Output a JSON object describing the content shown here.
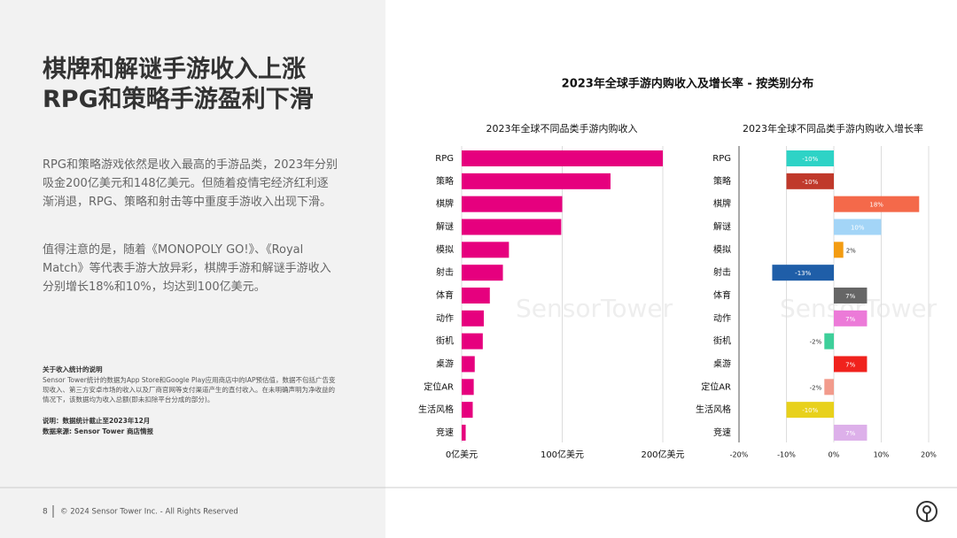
{
  "slide": {
    "title": [
      "棋牌和解谜手游收入上涨",
      "RPG和策略手游盈利下滑"
    ],
    "paragraphs": [
      "RPG和策略游戏依然是收入最高的手游品类，2023年分别吸金200亿美元和148亿美元。但随着疫情宅经济红利逐渐消退，RPG、策略和射击等中重度手游收入出现下滑。",
      "值得注意的是，随着《MONOPOLY GO!》、《Royal Match》等代表手游大放异彩，棋牌手游和解谜手游收入分别增长18%和10%，均达到100亿美元。"
    ],
    "note_title": "关于收入统计的说明",
    "note_text": "Sensor Tower统计的数据为App Store和Google Play应用商店中的IAP预估值，数据不包括广告变现收入、第三方安卓市场的收入以及厂商官网等支付渠道产生的直付收入。在未明确声明为净收益的情况下，该数据均为收入总额(即未扣除平台分成的部分)。",
    "remark": "说明：数据统计截止至2023年12月",
    "source": "数据来源: Sensor Tower 商店情报",
    "page": "8",
    "copyright": "© 2024 Sensor Tower Inc. - All Rights Reserved",
    "chart_title": "2023年全球手游内购收入及增长率 - 按类别分布",
    "watermark": "SensorTower"
  },
  "chart_data": [
    {
      "type": "bar",
      "orientation": "horizontal",
      "title": "2023年全球不同品类手游内购收入",
      "categories": [
        "RPG",
        "策略",
        "棋牌",
        "解谜",
        "模拟",
        "射击",
        "体育",
        "动作",
        "街机",
        "桌游",
        "定位AR",
        "生活风格",
        "竞速"
      ],
      "values": [
        200,
        148,
        100,
        99,
        47,
        41,
        28,
        22,
        21,
        13,
        12,
        11,
        4
      ],
      "color": "#e6007e",
      "xlim": [
        0,
        200
      ],
      "xticks": [
        {
          "value": 0,
          "label": "0亿美元"
        },
        {
          "value": 100,
          "label": "100亿美元"
        },
        {
          "value": 200,
          "label": "200亿美元"
        }
      ],
      "grid": true
    },
    {
      "type": "bar",
      "orientation": "horizontal",
      "title": "2023年全球不同品类手游内购收入增长率",
      "categories": [
        "RPG",
        "策略",
        "棋牌",
        "解谜",
        "模拟",
        "射击",
        "体育",
        "动作",
        "街机",
        "桌游",
        "定位AR",
        "生活风格",
        "竞速"
      ],
      "values": [
        -10,
        -10,
        18,
        10,
        2,
        -13,
        7,
        7,
        -2,
        7,
        -2,
        -10,
        7
      ],
      "value_labels": [
        "-10%",
        "-10%",
        "18%",
        "10%",
        "2%",
        "-13%",
        "7%",
        "7%",
        "-2%",
        "7%",
        "-2%",
        "-10%",
        "7%"
      ],
      "colors": [
        "#2ed3c6",
        "#c0392b",
        "#f4694a",
        "#a3d5f7",
        "#f39c12",
        "#1f5ea8",
        "#666666",
        "#ec7ad8",
        "#3ecf9a",
        "#f0221d",
        "#f29b8c",
        "#e8d11c",
        "#ddb0ea"
      ],
      "xlim": [
        -20,
        20
      ],
      "xticks": [
        {
          "value": -20,
          "label": "-20%"
        },
        {
          "value": -10,
          "label": "-10%"
        },
        {
          "value": 0,
          "label": "0%"
        },
        {
          "value": 10,
          "label": "10%"
        },
        {
          "value": 20,
          "label": "20%"
        }
      ],
      "grid": true
    }
  ]
}
